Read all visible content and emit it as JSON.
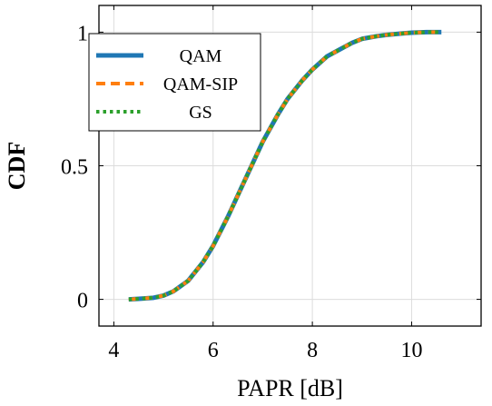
{
  "chart_data": {
    "type": "line",
    "title": "",
    "xlabel": "PAPR [dB]",
    "ylabel": "CDF",
    "xlim": [
      3.7,
      11.4
    ],
    "ylim": [
      -0.1,
      1.1
    ],
    "xticks": [
      4,
      6,
      8,
      10
    ],
    "yticks": [
      0,
      0.5,
      1
    ],
    "xtick_labels": [
      "4",
      "6",
      "8",
      "10"
    ],
    "ytick_labels": [
      "0",
      "0.5",
      "1"
    ],
    "grid": true,
    "legend_position": "top-left",
    "x": [
      4.3,
      4.5,
      4.8,
      5.0,
      5.2,
      5.5,
      5.8,
      6.0,
      6.3,
      6.5,
      6.8,
      7.0,
      7.3,
      7.5,
      7.8,
      8.0,
      8.3,
      8.5,
      8.8,
      9.0,
      9.3,
      9.5,
      9.8,
      10.0,
      10.3,
      10.6
    ],
    "series": [
      {
        "name": "QAM",
        "color": "#1f77b4",
        "style": "solid",
        "values": [
          0.0,
          0.002,
          0.006,
          0.014,
          0.03,
          0.07,
          0.14,
          0.2,
          0.31,
          0.39,
          0.51,
          0.59,
          0.69,
          0.75,
          0.82,
          0.86,
          0.91,
          0.93,
          0.96,
          0.975,
          0.985,
          0.99,
          0.995,
          0.998,
          1.0,
          1.0
        ]
      },
      {
        "name": "QAM-SIP",
        "color": "#ff7f0e",
        "style": "dashed",
        "values": [
          0.0,
          0.002,
          0.006,
          0.014,
          0.03,
          0.07,
          0.14,
          0.2,
          0.31,
          0.39,
          0.51,
          0.59,
          0.69,
          0.75,
          0.82,
          0.86,
          0.91,
          0.93,
          0.96,
          0.975,
          0.985,
          0.99,
          0.995,
          0.998,
          1.0,
          1.0
        ]
      },
      {
        "name": "GS",
        "color": "#2ca02c",
        "style": "dotted",
        "values": [
          0.0,
          0.002,
          0.006,
          0.014,
          0.03,
          0.07,
          0.14,
          0.2,
          0.31,
          0.39,
          0.51,
          0.59,
          0.69,
          0.75,
          0.82,
          0.86,
          0.91,
          0.93,
          0.96,
          0.975,
          0.985,
          0.99,
          0.995,
          0.998,
          1.0,
          1.0
        ]
      }
    ]
  }
}
